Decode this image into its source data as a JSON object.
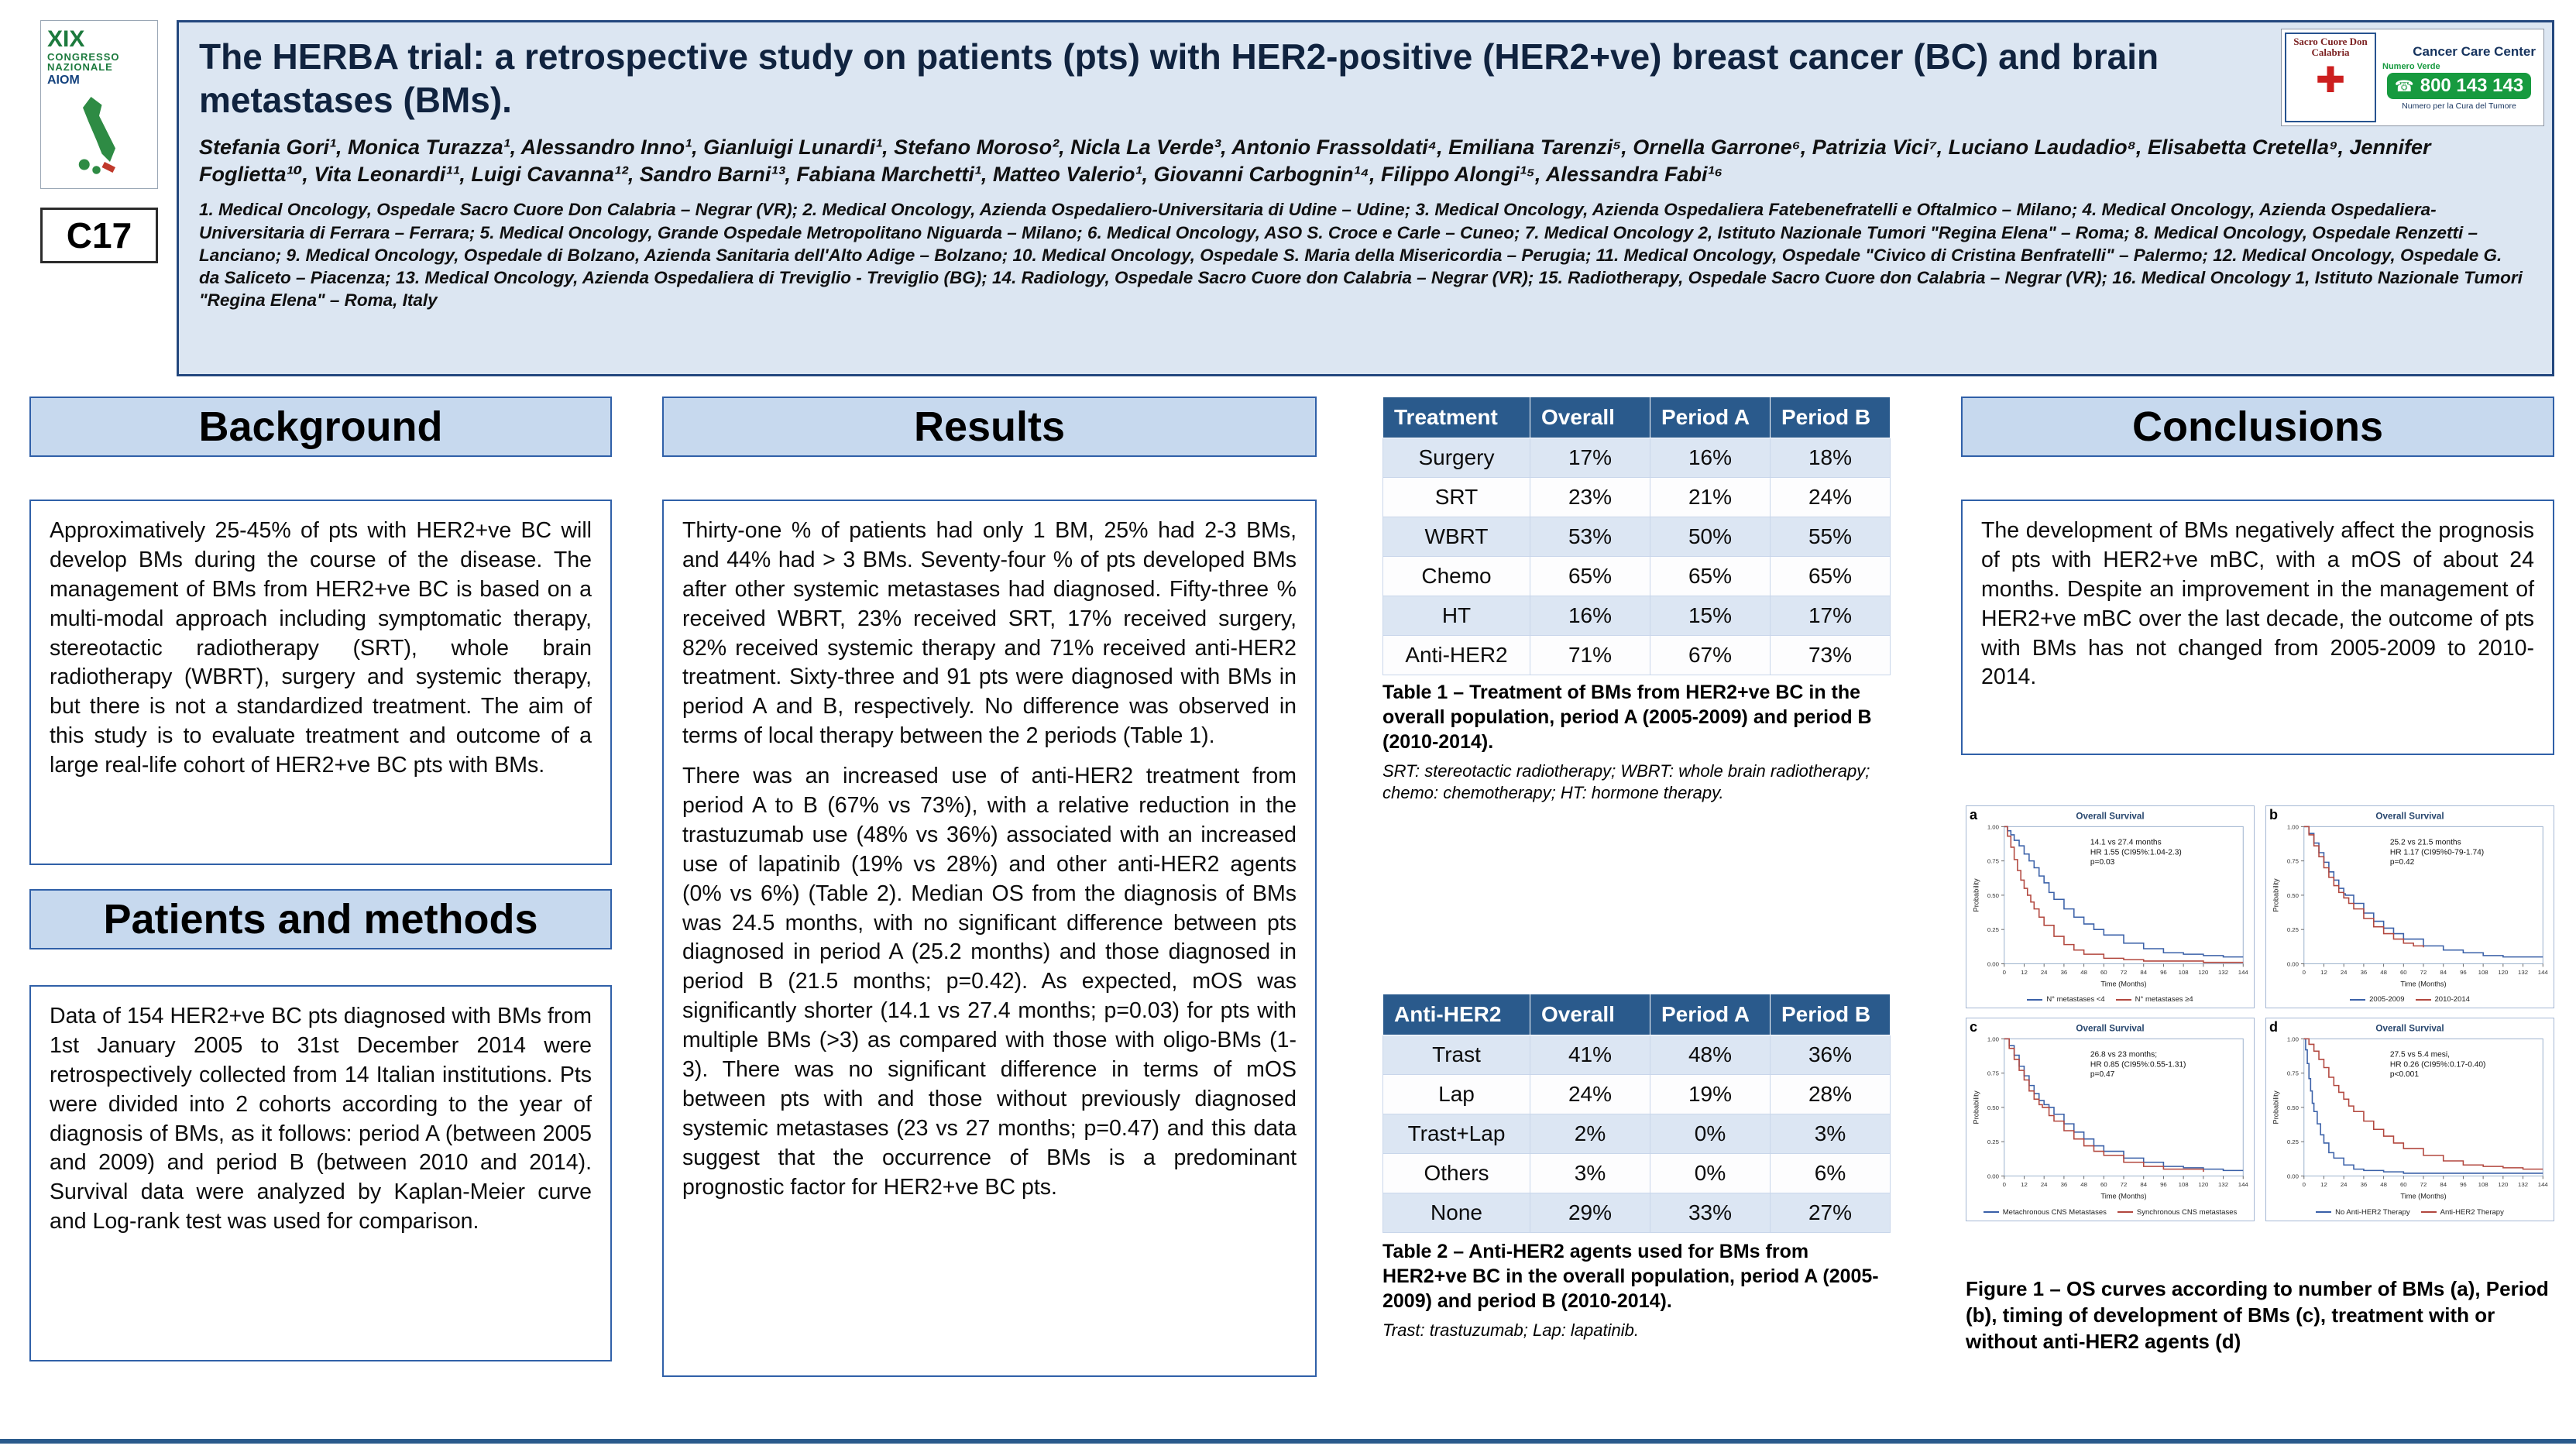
{
  "header": {
    "code": "C17",
    "title": "The HERBA trial: a retrospective study on patients (pts) with HER2-positive (HER2+ve) breast cancer (BC) and brain metastases (BMs).",
    "authors": "Stefania Gori¹, Monica Turazza¹, Alessandro Inno¹, Gianluigi Lunardi¹, Stefano Moroso², Nicla La Verde³, Antonio Frassoldati⁴, Emiliana Tarenzi⁵, Ornella Garrone⁶, Patrizia Vici⁷, Luciano Laudadio⁸, Elisabetta Cretella⁹, Jennifer Foglietta¹⁰, Vita Leonardi¹¹, Luigi Cavanna¹², Sandro Barni¹³, Fabiana Marchetti¹, Matteo Valerio¹, Giovanni Carbognin¹⁴, Filippo Alongi¹⁵, Alessandra Fabi¹⁶",
    "affiliations": "1. Medical Oncology, Ospedale Sacro Cuore Don Calabria – Negrar (VR); 2. Medical Oncology, Azienda Ospedaliero-Universitaria di Udine – Udine; 3. Medical Oncology, Azienda Ospedaliera Fatebenefratelli e Oftalmico – Milano; 4. Medical Oncology, Azienda Ospedaliera-Universitaria di Ferrara – Ferrara; 5. Medical Oncology, Grande Ospedale Metropolitano Niguarda – Milano; 6. Medical Oncology, ASO S. Croce e Carle – Cuneo; 7. Medical Oncology 2, Istituto Nazionale Tumori \"Regina Elena\" – Roma; 8. Medical Oncology, Ospedale Renzetti – Lanciano; 9. Medical Oncology, Ospedale di Bolzano, Azienda Sanitaria dell'Alto Adige – Bolzano; 10. Medical Oncology, Ospedale S. Maria della Misericordia – Perugia; 11. Medical Oncology, Ospedale \"Civico di Cristina Benfratelli\" – Palermo; 12. Medical Oncology, Ospedale G. da Saliceto – Piacenza; 13. Medical Oncology, Azienda Ospedaliera di Treviglio - Treviglio (BG); 14. Radiology, Ospedale Sacro Cuore don Calabria – Negrar (VR); 15. Radiotherapy, Ospedale Sacro Cuore don Calabria – Negrar (VR); 16. Medical Oncology 1, Istituto Nazionale Tumori \"Regina Elena\" – Roma, Italy",
    "congress_logo": {
      "line1": "XIX",
      "line2": "CONGRESSO",
      "line3": "NAZIONALE",
      "line4": "AIOM"
    },
    "hospital_logo": {
      "name": "Sacro Cuore Don Calabria"
    },
    "ccc": {
      "title": "Cancer Care Center",
      "numero_verde": "Numero Verde",
      "phone": "800 143 143",
      "sub": "Numero per la Cura del Tumore"
    }
  },
  "background": {
    "heading": "Background",
    "text": "Approximatively 25-45% of pts with HER2+ve BC will develop BMs during the course of the disease. The management of BMs from HER2+ve BC is based on a multi-modal approach including symptomatic therapy, stereotactic radiotherapy (SRT), whole brain radiotherapy (WBRT), surgery and systemic therapy, but there is not a standardized treatment. The aim of this study is to evaluate treatment and outcome of a large real-life cohort of HER2+ve BC pts with BMs."
  },
  "methods": {
    "heading": "Patients and methods",
    "text": "Data of 154 HER2+ve BC pts diagnosed with BMs from 1st January 2005 to 31st December 2014 were retrospectively collected from 14 Italian institutions. Pts were divided into 2 cohorts according to the year of diagnosis of BMs, as it follows: period A (between 2005 and 2009) and period B (between 2010 and 2014). Survival data were analyzed by Kaplan-Meier curve and Log-rank test was used for comparison."
  },
  "results": {
    "heading": "Results",
    "paragraphs": [
      "Thirty-one % of patients had only 1 BM, 25% had 2-3 BMs, and 44% had > 3 BMs. Seventy-four % of pts developed BMs after other systemic metastases had diagnosed. Fifty-three % received WBRT, 23% received SRT, 17% received surgery, 82% received systemic therapy and 71% received anti-HER2 treatment. Sixty-three and 91 pts were diagnosed with BMs in period A and B, respectively. No difference was observed in terms of local therapy between the 2 periods (Table 1).",
      "There was an increased use of anti-HER2 treatment from period A to B (67% vs 73%), with a relative reduction in the trastuzumab use (48% vs 36%) associated with an increased use of lapatinib (19% vs 28%) and other anti-HER2 agents (0% vs 6%) (Table 2). Median OS from the diagnosis of BMs was 24.5 months, with no significant difference between pts diagnosed in period A (25.2 months) and those diagnosed in period B (21.5 months; p=0.42). As expected, mOS was significantly shorter (14.1 vs 27.4 months; p=0.03) for pts with multiple BMs (>3) as compared with those with oligo-BMs (1-3). There was no significant difference in terms of mOS between pts with and those without previously diagnosed systemic metastases (23 vs 27 months; p=0.47) and this data suggest that the occurrence of BMs is a predominant prognostic factor for HER2+ve BC pts."
    ]
  },
  "table1": {
    "headers": [
      "Treatment",
      "Overall",
      "Period A",
      "Period B"
    ],
    "rows": [
      [
        "Surgery",
        "17%",
        "16%",
        "18%"
      ],
      [
        "SRT",
        "23%",
        "21%",
        "24%"
      ],
      [
        "WBRT",
        "53%",
        "50%",
        "55%"
      ],
      [
        "Chemo",
        "65%",
        "65%",
        "65%"
      ],
      [
        "HT",
        "16%",
        "15%",
        "17%"
      ],
      [
        "Anti-HER2",
        "71%",
        "67%",
        "73%"
      ]
    ],
    "caption": "Table 1 – Treatment of BMs from HER2+ve BC in the overall population, period A (2005-2009) and period B (2010-2014).",
    "footnote": "SRT: stereotactic radiotherapy; WBRT: whole brain radiotherapy; chemo: chemotherapy; HT: hormone therapy."
  },
  "table2": {
    "headers": [
      "Anti-HER2",
      "Overall",
      "Period A",
      "Period B"
    ],
    "rows": [
      [
        "Trast",
        "41%",
        "48%",
        "36%"
      ],
      [
        "Lap",
        "24%",
        "19%",
        "28%"
      ],
      [
        "Trast+Lap",
        "2%",
        "0%",
        "3%"
      ],
      [
        "Others",
        "3%",
        "0%",
        "6%"
      ],
      [
        "None",
        "29%",
        "33%",
        "27%"
      ]
    ],
    "caption": "Table 2 – Anti-HER2 agents used for BMs from HER2+ve BC in the overall population, period A (2005-2009) and period B (2010-2014).",
    "footnote": "Trast: trastuzumab; Lap: lapatinib."
  },
  "conclusions": {
    "heading": "Conclusions",
    "text": "The development of BMs negatively affect the prognosis of pts with HER2+ve mBC, with a mOS of about 24 months. Despite an improvement in the management of HER2+ve mBC over the last decade, the outcome of pts with BMs has not changed from 2005-2009 to 2010-2014."
  },
  "figure1": {
    "caption": "Figure 1 – OS curves according to number of BMs (a), Period (b), timing of development of BMs (c), treatment with or without anti-HER2 agents (d)",
    "panels": [
      {
        "letter": "a",
        "annotation": [
          "14.1 vs 27.4 months",
          "HR 1.55 (CI95%:1.04-2.3)",
          "p=0.03"
        ],
        "legend": [
          "N° metastases <4",
          "N° metastases ≥4"
        ]
      },
      {
        "letter": "b",
        "annotation": [
          "25.2 vs 21.5 months",
          "HR 1.17 (CI95%0-79-1.74)",
          "p=0.42"
        ],
        "legend": [
          "2005-2009",
          "2010-2014"
        ]
      },
      {
        "letter": "c",
        "annotation": [
          "26.8 vs 23 months;",
          "HR 0.85 (CI95%:0.55-1.31)",
          "p=0.47"
        ],
        "legend": [
          "Metachronous CNS Metastases",
          "Synchronous CNS metastases"
        ]
      },
      {
        "letter": "d",
        "annotation": [
          "27.5 vs 5.4 mesi,",
          "HR 0.26 (CI95%:0.17-0.40)",
          "p<0.001"
        ],
        "legend": [
          "No Anti-HER2 Therapy",
          "Anti-HER2 Therapy"
        ]
      }
    ]
  },
  "colors": {
    "accent_blue": "#3060a8",
    "table_header": "#2a5a8c",
    "header_band": "#dce6f2",
    "phone_green": "#179a3f",
    "curve_blue": "#3a60a8",
    "curve_red": "#b2473e"
  },
  "chart_data": [
    {
      "type": "line",
      "subtype": "kaplan-meier",
      "panel": "a",
      "title": "Overall Survival",
      "xlabel": "Time (Months)",
      "ylabel": "Probability",
      "xlim": [
        0,
        144
      ],
      "ylim": [
        0,
        1
      ],
      "x_ticks": [
        0,
        12,
        24,
        36,
        48,
        60,
        72,
        84,
        96,
        108,
        120,
        132,
        144
      ],
      "y_ticks": [
        0,
        0.25,
        0.5,
        0.75,
        1
      ],
      "annotation": "14.1 vs 27.4 months; HR 1.55 (CI95%:1.04-2.3); p=0.03",
      "legend_position": "bottom",
      "grid": false,
      "series": [
        {
          "name": "N° metastases <4",
          "color": "#3a60a8",
          "x": [
            0,
            2,
            4,
            6,
            9,
            12,
            15,
            18,
            21,
            24,
            27,
            30,
            36,
            42,
            48,
            54,
            60,
            72,
            84,
            96,
            108,
            120,
            132,
            144
          ],
          "y": [
            1,
            0.97,
            0.94,
            0.9,
            0.86,
            0.8,
            0.75,
            0.7,
            0.64,
            0.59,
            0.52,
            0.47,
            0.4,
            0.34,
            0.29,
            0.25,
            0.21,
            0.15,
            0.11,
            0.08,
            0.07,
            0.06,
            0.05,
            0.05
          ]
        },
        {
          "name": "N° metastases ≥4",
          "color": "#b2473e",
          "x": [
            0,
            2,
            4,
            6,
            8,
            10,
            12,
            14,
            16,
            18,
            21,
            24,
            30,
            36,
            42,
            48,
            60,
            72,
            84,
            96,
            120,
            144
          ],
          "y": [
            1,
            0.93,
            0.85,
            0.76,
            0.68,
            0.61,
            0.55,
            0.5,
            0.45,
            0.4,
            0.34,
            0.28,
            0.2,
            0.14,
            0.1,
            0.07,
            0.04,
            0.03,
            0.02,
            0.02,
            0.01,
            0.01
          ]
        }
      ]
    },
    {
      "type": "line",
      "subtype": "kaplan-meier",
      "panel": "b",
      "title": "Overall Survival",
      "xlabel": "Time (Months)",
      "ylabel": "Probability",
      "xlim": [
        0,
        144
      ],
      "ylim": [
        0,
        1
      ],
      "x_ticks": [
        0,
        12,
        24,
        36,
        48,
        60,
        72,
        84,
        96,
        108,
        120,
        132,
        144
      ],
      "y_ticks": [
        0,
        0.25,
        0.5,
        0.75,
        1
      ],
      "annotation": "25.2 vs 21.5 months; HR 1.17 (CI95%0-79-1.74); p=0.42",
      "legend_position": "bottom",
      "grid": false,
      "series": [
        {
          "name": "2005-2009",
          "color": "#3a60a8",
          "x": [
            0,
            3,
            6,
            9,
            12,
            15,
            18,
            21,
            24,
            25,
            30,
            36,
            42,
            48,
            54,
            60,
            72,
            84,
            96,
            108,
            120,
            132,
            144
          ],
          "y": [
            1,
            0.95,
            0.88,
            0.81,
            0.74,
            0.67,
            0.61,
            0.55,
            0.51,
            0.5,
            0.44,
            0.37,
            0.31,
            0.26,
            0.22,
            0.18,
            0.13,
            0.1,
            0.08,
            0.06,
            0.05,
            0.05,
            0.05
          ]
        },
        {
          "name": "2010-2014",
          "color": "#b2473e",
          "x": [
            0,
            3,
            6,
            9,
            12,
            15,
            18,
            21,
            24,
            27,
            30,
            36,
            42,
            48,
            54,
            60,
            66,
            72
          ],
          "y": [
            1,
            0.94,
            0.86,
            0.78,
            0.7,
            0.63,
            0.57,
            0.52,
            0.48,
            0.44,
            0.4,
            0.33,
            0.27,
            0.22,
            0.18,
            0.15,
            0.13,
            0.12
          ]
        }
      ]
    },
    {
      "type": "line",
      "subtype": "kaplan-meier",
      "panel": "c",
      "title": "Overall Survival",
      "xlabel": "Time (Months)",
      "ylabel": "Probability",
      "xlim": [
        0,
        144
      ],
      "ylim": [
        0,
        1
      ],
      "x_ticks": [
        0,
        12,
        24,
        36,
        48,
        60,
        72,
        84,
        96,
        108,
        120,
        132,
        144
      ],
      "y_ticks": [
        0,
        0.25,
        0.5,
        0.75,
        1
      ],
      "annotation": "26.8 vs 23 months; HR 0.85 (CI95%:0.55-1.31); p=0.47",
      "legend_position": "bottom",
      "grid": false,
      "series": [
        {
          "name": "Metachronous CNS Metastases",
          "color": "#3a60a8",
          "x": [
            0,
            3,
            6,
            9,
            12,
            15,
            18,
            21,
            24,
            27,
            30,
            36,
            42,
            48,
            54,
            60,
            72,
            84,
            96,
            108,
            120,
            132,
            144
          ],
          "y": [
            1,
            0.95,
            0.88,
            0.8,
            0.73,
            0.66,
            0.6,
            0.55,
            0.52,
            0.5,
            0.45,
            0.38,
            0.32,
            0.27,
            0.22,
            0.18,
            0.13,
            0.1,
            0.07,
            0.06,
            0.05,
            0.04,
            0.04
          ]
        },
        {
          "name": "Synchronous CNS metastases",
          "color": "#b2473e",
          "x": [
            0,
            3,
            6,
            9,
            12,
            15,
            18,
            21,
            23,
            27,
            30,
            36,
            42,
            48,
            54,
            60,
            72,
            84,
            96,
            120
          ],
          "y": [
            1,
            0.93,
            0.85,
            0.77,
            0.7,
            0.62,
            0.56,
            0.52,
            0.5,
            0.44,
            0.4,
            0.33,
            0.27,
            0.22,
            0.18,
            0.15,
            0.1,
            0.07,
            0.05,
            0.03
          ]
        }
      ]
    },
    {
      "type": "line",
      "subtype": "kaplan-meier",
      "panel": "d",
      "title": "Overall Survival",
      "xlabel": "Time (Months)",
      "ylabel": "Probability",
      "xlim": [
        0,
        144
      ],
      "ylim": [
        0,
        1
      ],
      "x_ticks": [
        0,
        12,
        24,
        36,
        48,
        60,
        72,
        84,
        96,
        108,
        120,
        132,
        144
      ],
      "y_ticks": [
        0,
        0.25,
        0.5,
        0.75,
        1
      ],
      "annotation": "27.5 vs 5.4 mesi, HR 0.26 (CI95%:0.17-0.40); p<0.001",
      "legend_position": "bottom",
      "grid": false,
      "series": [
        {
          "name": "No Anti-HER2 Therapy",
          "color": "#3a60a8",
          "x": [
            0,
            1,
            2,
            3,
            4,
            5,
            6,
            8,
            10,
            12,
            15,
            18,
            24,
            30,
            36,
            48,
            60,
            84,
            120,
            144
          ],
          "y": [
            1,
            0.92,
            0.82,
            0.71,
            0.62,
            0.53,
            0.47,
            0.38,
            0.3,
            0.24,
            0.17,
            0.13,
            0.08,
            0.05,
            0.04,
            0.03,
            0.02,
            0.02,
            0.02,
            0.02
          ]
        },
        {
          "name": "Anti-HER2 Therapy",
          "color": "#b2473e",
          "x": [
            0,
            3,
            6,
            9,
            12,
            15,
            18,
            21,
            24,
            27,
            30,
            36,
            42,
            48,
            54,
            60,
            72,
            84,
            96,
            108,
            120,
            132,
            144
          ],
          "y": [
            1,
            0.96,
            0.91,
            0.85,
            0.79,
            0.72,
            0.66,
            0.61,
            0.56,
            0.51,
            0.47,
            0.4,
            0.34,
            0.29,
            0.24,
            0.2,
            0.15,
            0.11,
            0.08,
            0.07,
            0.06,
            0.05,
            0.05
          ]
        }
      ]
    }
  ]
}
